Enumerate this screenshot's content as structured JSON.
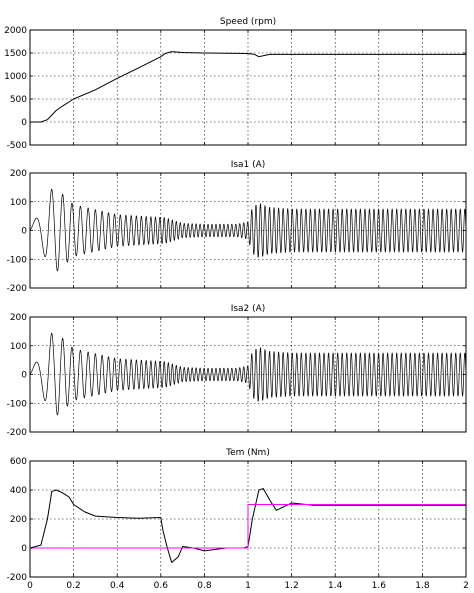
{
  "chart_data": [
    {
      "type": "line",
      "title": "Speed (rpm)",
      "xlim": [
        0,
        2
      ],
      "ylim": [
        -500,
        2000
      ],
      "xticks": [
        0,
        0.2,
        0.4,
        0.6,
        0.8,
        1,
        1.2,
        1.4,
        1.6,
        1.8,
        2
      ],
      "yticks": [
        -500,
        0,
        500,
        1000,
        1500,
        2000
      ],
      "ytick_labels": [
        "-500",
        "0",
        "500",
        "1000",
        "1500",
        "2000"
      ],
      "xtick_labels": [],
      "grid": true,
      "series": [
        {
          "color": "#000000",
          "x": [
            0,
            0.05,
            0.08,
            0.1,
            0.12,
            0.15,
            0.2,
            0.3,
            0.4,
            0.5,
            0.6,
            0.62,
            0.65,
            0.7,
            0.8,
            0.9,
            1.0,
            1.03,
            1.05,
            1.08,
            1.1,
            1.2,
            1.5,
            2.0
          ],
          "y": [
            0,
            0,
            50,
            150,
            250,
            350,
            500,
            700,
            950,
            1180,
            1420,
            1490,
            1530,
            1510,
            1500,
            1495,
            1490,
            1470,
            1420,
            1450,
            1470,
            1470,
            1470,
            1470
          ]
        }
      ]
    },
    {
      "type": "line",
      "title": "Isa1 (A)",
      "xlim": [
        0,
        2
      ],
      "ylim": [
        -200,
        200
      ],
      "xticks": [
        0,
        0.2,
        0.4,
        0.6,
        0.8,
        1,
        1.2,
        1.4,
        1.6,
        1.8,
        2
      ],
      "yticks": [
        -200,
        -100,
        0,
        100,
        200
      ],
      "ytick_labels": [
        "-200",
        "-100",
        "0",
        "100",
        "200"
      ],
      "xtick_labels": [],
      "grid": true,
      "series": [
        {
          "color": "#000000",
          "waveform": "ac",
          "envelope_t": [
            0,
            0.05,
            0.1,
            0.13,
            0.2,
            0.4,
            0.55,
            0.62,
            0.7,
            0.8,
            0.95,
            1.0,
            1.02,
            1.05,
            1.1,
            1.2,
            2.0
          ],
          "envelope_a": [
            20,
            60,
            145,
            140,
            90,
            55,
            48,
            45,
            25,
            22,
            22,
            30,
            80,
            95,
            80,
            75,
            75
          ],
          "frequency_t": [
            0,
            0.15,
            0.6,
            0.65,
            1.0,
            1.05,
            2.0
          ],
          "frequency_f": [
            8,
            22,
            50,
            55,
            55,
            48,
            48
          ]
        }
      ]
    },
    {
      "type": "line",
      "title": "Isa2 (A)",
      "xlim": [
        0,
        2
      ],
      "ylim": [
        -200,
        200
      ],
      "xticks": [
        0,
        0.2,
        0.4,
        0.6,
        0.8,
        1,
        1.2,
        1.4,
        1.6,
        1.8,
        2
      ],
      "yticks": [
        -200,
        -100,
        0,
        100,
        200
      ],
      "ytick_labels": [
        "-200",
        "-100",
        "0",
        "100",
        "200"
      ],
      "xtick_labels": [],
      "grid": true,
      "series": [
        {
          "color": "#000000",
          "waveform": "ac",
          "envelope_t": [
            0,
            0.05,
            0.1,
            0.13,
            0.2,
            0.4,
            0.55,
            0.62,
            0.7,
            0.8,
            0.95,
            1.0,
            1.02,
            1.05,
            1.1,
            1.2,
            2.0
          ],
          "envelope_a": [
            20,
            60,
            145,
            140,
            90,
            55,
            48,
            45,
            25,
            22,
            22,
            30,
            80,
            95,
            80,
            75,
            75
          ],
          "frequency_t": [
            0,
            0.15,
            0.6,
            0.65,
            1.0,
            1.05,
            2.0
          ],
          "frequency_f": [
            8,
            22,
            50,
            55,
            55,
            48,
            48
          ]
        }
      ]
    },
    {
      "type": "line",
      "title": "Tem (Nm)",
      "xlim": [
        0,
        2
      ],
      "ylim": [
        -200,
        600
      ],
      "xticks": [
        0,
        0.2,
        0.4,
        0.6,
        0.8,
        1,
        1.2,
        1.4,
        1.6,
        1.8,
        2
      ],
      "yticks": [
        -200,
        0,
        200,
        400,
        600
      ],
      "ytick_labels": [
        "-200",
        "0",
        "200",
        "400",
        "600"
      ],
      "xtick_labels": [
        "0",
        "0.2",
        "0.4",
        "0.6",
        "0.8",
        "1",
        "1.2",
        "1.4",
        "1.6",
        "1.8",
        "2"
      ],
      "grid": true,
      "series": [
        {
          "color": "#000000",
          "x": [
            0,
            0.05,
            0.08,
            0.1,
            0.12,
            0.15,
            0.18,
            0.2,
            0.25,
            0.3,
            0.4,
            0.5,
            0.6,
            0.61,
            0.63,
            0.65,
            0.68,
            0.7,
            0.75,
            0.8,
            0.9,
            0.98,
            1.0,
            1.02,
            1.05,
            1.07,
            1.1,
            1.13,
            1.2,
            1.3,
            1.5,
            2.0
          ],
          "y": [
            0,
            20,
            200,
            390,
            400,
            380,
            350,
            300,
            250,
            220,
            210,
            205,
            210,
            120,
            0,
            -100,
            -60,
            10,
            0,
            -20,
            0,
            0,
            10,
            200,
            400,
            410,
            330,
            260,
            310,
            295,
            295,
            295
          ]
        },
        {
          "color": "#ff00ff",
          "x": [
            0,
            1.0,
            1.0,
            2.0
          ],
          "y": [
            0,
            0,
            300,
            300
          ]
        }
      ]
    }
  ]
}
